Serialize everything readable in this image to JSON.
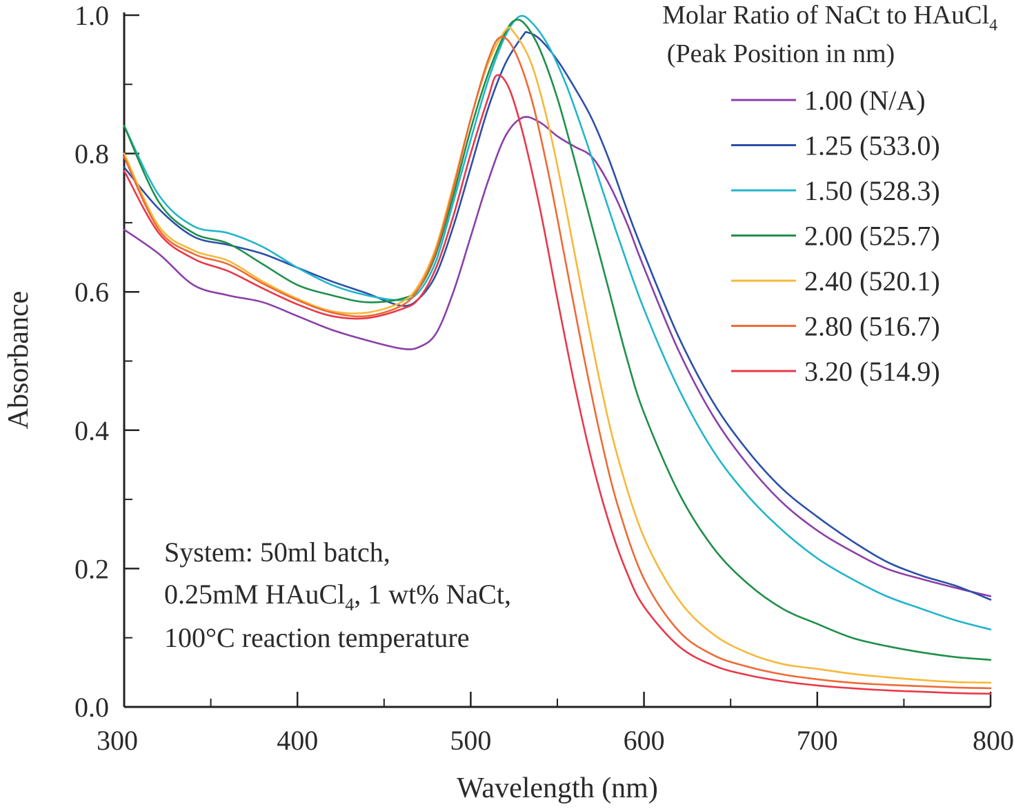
{
  "chart_data": {
    "type": "line",
    "title": "",
    "xlabel": "Wavelength (nm)",
    "ylabel": "Absorbance",
    "xlim": [
      300,
      800
    ],
    "ylim": [
      0.0,
      1.0
    ],
    "xticks": [
      300,
      400,
      500,
      600,
      700,
      800
    ],
    "yticks": [
      0.0,
      0.2,
      0.4,
      0.6,
      0.8,
      1.0
    ],
    "xtick_labels": [
      "300",
      "400",
      "500",
      "600",
      "700",
      "800"
    ],
    "ytick_labels": [
      "0.0",
      "0.2",
      "0.4",
      "0.6",
      "0.8",
      "1.0"
    ],
    "grid": false,
    "legend": {
      "placement": "top-right",
      "title_line1": "Molar Ratio of NaCt to HAuCl",
      "title_line1_sub": "4",
      "title_line2": "(Peak Position in nm)"
    },
    "annotation": {
      "line1": "System: 50ml batch,",
      "line2_a": "0.25mM HAuCl",
      "line2_sub": "4",
      "line2_b": ", 1 wt% NaCt,",
      "line3": "100°C reaction temperature"
    },
    "series": [
      {
        "name": "1.00 (N/A)",
        "color": "#8a3fa8",
        "points": [
          [
            300,
            0.69
          ],
          [
            320,
            0.655
          ],
          [
            340,
            0.61
          ],
          [
            360,
            0.595
          ],
          [
            380,
            0.585
          ],
          [
            400,
            0.565
          ],
          [
            420,
            0.545
          ],
          [
            440,
            0.53
          ],
          [
            460,
            0.518
          ],
          [
            470,
            0.52
          ],
          [
            480,
            0.54
          ],
          [
            490,
            0.6
          ],
          [
            500,
            0.68
          ],
          [
            510,
            0.76
          ],
          [
            520,
            0.825
          ],
          [
            530,
            0.852
          ],
          [
            540,
            0.845
          ],
          [
            550,
            0.825
          ],
          [
            560,
            0.81
          ],
          [
            570,
            0.795
          ],
          [
            580,
            0.755
          ],
          [
            590,
            0.7
          ],
          [
            600,
            0.635
          ],
          [
            620,
            0.515
          ],
          [
            640,
            0.42
          ],
          [
            660,
            0.35
          ],
          [
            680,
            0.295
          ],
          [
            700,
            0.255
          ],
          [
            720,
            0.225
          ],
          [
            740,
            0.2
          ],
          [
            760,
            0.185
          ],
          [
            780,
            0.172
          ],
          [
            800,
            0.16
          ]
        ]
      },
      {
        "name": "1.25 (533.0)",
        "color": "#2a4fa8",
        "points": [
          [
            300,
            0.78
          ],
          [
            320,
            0.72
          ],
          [
            340,
            0.68
          ],
          [
            360,
            0.668
          ],
          [
            380,
            0.655
          ],
          [
            400,
            0.635
          ],
          [
            420,
            0.615
          ],
          [
            440,
            0.598
          ],
          [
            460,
            0.58
          ],
          [
            470,
            0.59
          ],
          [
            480,
            0.625
          ],
          [
            490,
            0.695
          ],
          [
            500,
            0.78
          ],
          [
            510,
            0.865
          ],
          [
            520,
            0.93
          ],
          [
            530,
            0.97
          ],
          [
            533,
            0.975
          ],
          [
            540,
            0.965
          ],
          [
            550,
            0.935
          ],
          [
            560,
            0.895
          ],
          [
            570,
            0.85
          ],
          [
            580,
            0.79
          ],
          [
            590,
            0.72
          ],
          [
            600,
            0.655
          ],
          [
            620,
            0.535
          ],
          [
            640,
            0.44
          ],
          [
            660,
            0.37
          ],
          [
            680,
            0.315
          ],
          [
            700,
            0.275
          ],
          [
            720,
            0.24
          ],
          [
            740,
            0.21
          ],
          [
            760,
            0.19
          ],
          [
            780,
            0.175
          ],
          [
            800,
            0.155
          ]
        ]
      },
      {
        "name": "1.50 (528.3)",
        "color": "#22b5c9",
        "points": [
          [
            300,
            0.84
          ],
          [
            320,
            0.74
          ],
          [
            340,
            0.695
          ],
          [
            360,
            0.685
          ],
          [
            380,
            0.665
          ],
          [
            400,
            0.635
          ],
          [
            420,
            0.61
          ],
          [
            440,
            0.595
          ],
          [
            460,
            0.588
          ],
          [
            470,
            0.6
          ],
          [
            480,
            0.645
          ],
          [
            490,
            0.73
          ],
          [
            500,
            0.82
          ],
          [
            510,
            0.905
          ],
          [
            520,
            0.97
          ],
          [
            528,
            0.998
          ],
          [
            535,
            0.99
          ],
          [
            545,
            0.955
          ],
          [
            555,
            0.9
          ],
          [
            565,
            0.83
          ],
          [
            575,
            0.755
          ],
          [
            585,
            0.68
          ],
          [
            600,
            0.575
          ],
          [
            620,
            0.46
          ],
          [
            640,
            0.37
          ],
          [
            660,
            0.305
          ],
          [
            680,
            0.255
          ],
          [
            700,
            0.215
          ],
          [
            720,
            0.185
          ],
          [
            740,
            0.16
          ],
          [
            760,
            0.142
          ],
          [
            780,
            0.125
          ],
          [
            800,
            0.112
          ]
        ]
      },
      {
        "name": "2.00 (525.7)",
        "color": "#1f8f4a",
        "points": [
          [
            300,
            0.84
          ],
          [
            320,
            0.73
          ],
          [
            340,
            0.685
          ],
          [
            360,
            0.67
          ],
          [
            380,
            0.64
          ],
          [
            400,
            0.61
          ],
          [
            420,
            0.595
          ],
          [
            440,
            0.585
          ],
          [
            460,
            0.59
          ],
          [
            470,
            0.605
          ],
          [
            480,
            0.655
          ],
          [
            490,
            0.74
          ],
          [
            500,
            0.835
          ],
          [
            510,
            0.915
          ],
          [
            520,
            0.975
          ],
          [
            526,
            0.993
          ],
          [
            532,
            0.985
          ],
          [
            540,
            0.95
          ],
          [
            550,
            0.88
          ],
          [
            560,
            0.79
          ],
          [
            570,
            0.695
          ],
          [
            580,
            0.6
          ],
          [
            590,
            0.505
          ],
          [
            600,
            0.425
          ],
          [
            620,
            0.31
          ],
          [
            640,
            0.23
          ],
          [
            660,
            0.178
          ],
          [
            680,
            0.142
          ],
          [
            700,
            0.12
          ],
          [
            720,
            0.1
          ],
          [
            740,
            0.088
          ],
          [
            760,
            0.079
          ],
          [
            780,
            0.072
          ],
          [
            800,
            0.068
          ]
        ]
      },
      {
        "name": "2.40 (520.1)",
        "color": "#f6b83a",
        "points": [
          [
            300,
            0.8
          ],
          [
            320,
            0.695
          ],
          [
            340,
            0.66
          ],
          [
            360,
            0.645
          ],
          [
            380,
            0.615
          ],
          [
            400,
            0.59
          ],
          [
            420,
            0.572
          ],
          [
            440,
            0.57
          ],
          [
            460,
            0.585
          ],
          [
            470,
            0.61
          ],
          [
            480,
            0.665
          ],
          [
            490,
            0.755
          ],
          [
            500,
            0.85
          ],
          [
            510,
            0.93
          ],
          [
            520,
            0.978
          ],
          [
            525,
            0.975
          ],
          [
            535,
            0.93
          ],
          [
            545,
            0.84
          ],
          [
            555,
            0.72
          ],
          [
            565,
            0.59
          ],
          [
            575,
            0.465
          ],
          [
            585,
            0.36
          ],
          [
            600,
            0.245
          ],
          [
            620,
            0.155
          ],
          [
            640,
            0.105
          ],
          [
            660,
            0.078
          ],
          [
            680,
            0.062
          ],
          [
            700,
            0.055
          ],
          [
            720,
            0.048
          ],
          [
            740,
            0.043
          ],
          [
            760,
            0.039
          ],
          [
            780,
            0.036
          ],
          [
            800,
            0.035
          ]
        ]
      },
      {
        "name": "2.80 (516.7)",
        "color": "#ee6a35",
        "points": [
          [
            300,
            0.795
          ],
          [
            320,
            0.69
          ],
          [
            340,
            0.655
          ],
          [
            360,
            0.64
          ],
          [
            380,
            0.612
          ],
          [
            400,
            0.588
          ],
          [
            420,
            0.57
          ],
          [
            440,
            0.565
          ],
          [
            460,
            0.58
          ],
          [
            470,
            0.605
          ],
          [
            480,
            0.66
          ],
          [
            490,
            0.75
          ],
          [
            500,
            0.85
          ],
          [
            510,
            0.935
          ],
          [
            517,
            0.968
          ],
          [
            525,
            0.95
          ],
          [
            535,
            0.88
          ],
          [
            545,
            0.77
          ],
          [
            555,
            0.64
          ],
          [
            565,
            0.51
          ],
          [
            575,
            0.39
          ],
          [
            585,
            0.29
          ],
          [
            600,
            0.185
          ],
          [
            620,
            0.11
          ],
          [
            640,
            0.075
          ],
          [
            660,
            0.058
          ],
          [
            680,
            0.047
          ],
          [
            700,
            0.04
          ],
          [
            720,
            0.035
          ],
          [
            740,
            0.032
          ],
          [
            760,
            0.03
          ],
          [
            780,
            0.028
          ],
          [
            800,
            0.027
          ]
        ]
      },
      {
        "name": "3.20 (514.9)",
        "color": "#e8384a",
        "points": [
          [
            300,
            0.775
          ],
          [
            320,
            0.685
          ],
          [
            340,
            0.648
          ],
          [
            360,
            0.63
          ],
          [
            380,
            0.605
          ],
          [
            400,
            0.582
          ],
          [
            420,
            0.565
          ],
          [
            440,
            0.562
          ],
          [
            460,
            0.575
          ],
          [
            470,
            0.59
          ],
          [
            480,
            0.635
          ],
          [
            490,
            0.71
          ],
          [
            500,
            0.8
          ],
          [
            510,
            0.88
          ],
          [
            515,
            0.913
          ],
          [
            522,
            0.895
          ],
          [
            530,
            0.83
          ],
          [
            540,
            0.72
          ],
          [
            550,
            0.59
          ],
          [
            560,
            0.465
          ],
          [
            570,
            0.355
          ],
          [
            580,
            0.265
          ],
          [
            590,
            0.195
          ],
          [
            600,
            0.145
          ],
          [
            620,
            0.088
          ],
          [
            640,
            0.06
          ],
          [
            660,
            0.046
          ],
          [
            680,
            0.037
          ],
          [
            700,
            0.031
          ],
          [
            720,
            0.027
          ],
          [
            740,
            0.024
          ],
          [
            760,
            0.022
          ],
          [
            780,
            0.02
          ],
          [
            800,
            0.019
          ]
        ]
      }
    ]
  }
}
